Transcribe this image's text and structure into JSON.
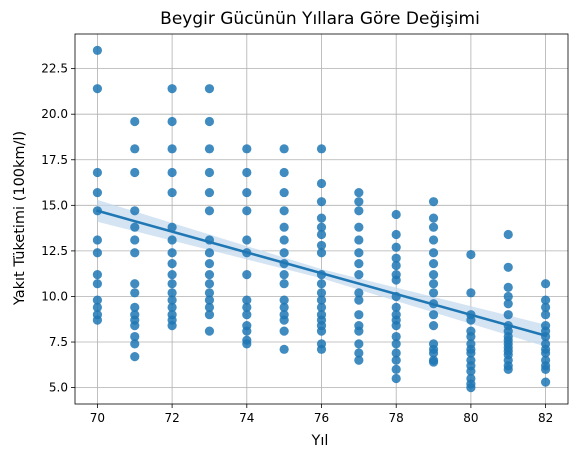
{
  "chart_data": {
    "type": "scatter",
    "title": "Beygir Gücünün Yıllara Göre Değişimi",
    "xlabel": "Yıl",
    "ylabel": "Yakıt Tüketimi (100km/l)",
    "xlim": [
      69.4,
      82.6
    ],
    "ylim": [
      4.1,
      24.4
    ],
    "xticks": [
      70,
      72,
      74,
      76,
      78,
      80,
      82
    ],
    "yticks": [
      5.0,
      7.5,
      10.0,
      12.5,
      15.0,
      17.5,
      20.0,
      22.5
    ],
    "xtick_labels": [
      "70",
      "72",
      "74",
      "76",
      "78",
      "80",
      "82"
    ],
    "ytick_labels": [
      "5.0",
      "7.5",
      "10.0",
      "12.5",
      "15.0",
      "17.5",
      "20.0",
      "22.5"
    ],
    "grid": true,
    "point_color": "#1f77b4",
    "line_color": "#1f77b4",
    "band_color": "#c6dbef",
    "points_by_year": [
      {
        "x": 70,
        "y": [
          23.5,
          21.4,
          16.8,
          15.7,
          14.7,
          13.1,
          12.4,
          11.2,
          10.7,
          9.8,
          9.4,
          9.0,
          8.7
        ]
      },
      {
        "x": 71,
        "y": [
          19.6,
          18.1,
          16.8,
          14.7,
          13.8,
          13.1,
          12.4,
          10.7,
          10.2,
          9.4,
          9.0,
          8.7,
          8.4,
          7.8,
          7.4,
          6.7
        ]
      },
      {
        "x": 72,
        "y": [
          21.4,
          19.6,
          18.1,
          16.8,
          15.7,
          13.8,
          13.1,
          12.4,
          11.8,
          11.2,
          10.7,
          10.2,
          9.8,
          9.4,
          9.0,
          8.7,
          8.4
        ]
      },
      {
        "x": 73,
        "y": [
          21.4,
          19.6,
          18.1,
          16.8,
          15.7,
          14.7,
          13.1,
          12.4,
          11.8,
          11.2,
          10.7,
          10.2,
          9.8,
          9.4,
          9.0,
          8.1
        ]
      },
      {
        "x": 74,
        "y": [
          18.1,
          16.8,
          15.7,
          14.7,
          13.1,
          12.4,
          11.2,
          9.8,
          9.4,
          9.0,
          8.4,
          8.1,
          7.6,
          7.4
        ]
      },
      {
        "x": 75,
        "y": [
          18.1,
          16.8,
          15.7,
          14.7,
          13.8,
          13.1,
          12.4,
          11.8,
          11.2,
          10.7,
          9.8,
          9.4,
          9.0,
          8.7,
          8.1,
          7.1
        ]
      },
      {
        "x": 76,
        "y": [
          18.1,
          16.2,
          15.2,
          14.3,
          13.8,
          13.4,
          12.8,
          12.4,
          11.2,
          10.7,
          10.2,
          9.8,
          9.4,
          9.0,
          8.7,
          8.4,
          8.1,
          7.4,
          7.1
        ]
      },
      {
        "x": 77,
        "y": [
          15.7,
          15.2,
          14.7,
          13.8,
          13.1,
          12.4,
          11.8,
          11.2,
          10.2,
          9.8,
          9.0,
          8.4,
          8.1,
          7.4,
          6.9,
          6.5
        ]
      },
      {
        "x": 78,
        "y": [
          14.5,
          13.4,
          12.7,
          12.1,
          11.7,
          11.2,
          10.9,
          10.0,
          9.4,
          9.0,
          8.7,
          8.4,
          7.8,
          7.4,
          6.9,
          6.5,
          6.0,
          5.5
        ]
      },
      {
        "x": 79,
        "y": [
          15.2,
          14.3,
          13.8,
          13.1,
          12.4,
          11.8,
          11.2,
          10.7,
          10.2,
          9.6,
          9.0,
          8.4,
          7.4,
          7.1,
          6.9,
          6.5,
          6.4
        ]
      },
      {
        "x": 80,
        "y": [
          12.3,
          10.2,
          9.0,
          8.7,
          8.1,
          7.8,
          7.4,
          7.1,
          6.9,
          6.5,
          6.2,
          5.9,
          5.5,
          5.2,
          5.0
        ]
      },
      {
        "x": 81,
        "y": [
          13.4,
          11.6,
          10.5,
          10.0,
          9.6,
          9.0,
          8.4,
          8.1,
          7.8,
          7.6,
          7.4,
          7.2,
          7.0,
          6.8,
          6.5,
          6.2,
          6.0
        ]
      },
      {
        "x": 82,
        "y": [
          10.7,
          9.8,
          9.4,
          9.0,
          8.4,
          8.1,
          7.8,
          7.4,
          7.1,
          6.9,
          6.5,
          6.2,
          6.0,
          5.3
        ]
      }
    ],
    "regression": {
      "x": [
        70,
        82
      ],
      "y": [
        14.7,
        7.85
      ]
    },
    "ci_band": {
      "x": [
        70,
        76,
        82
      ],
      "upper": [
        15.3,
        11.5,
        8.45
      ],
      "lower": [
        14.1,
        11.0,
        7.25
      ]
    }
  }
}
